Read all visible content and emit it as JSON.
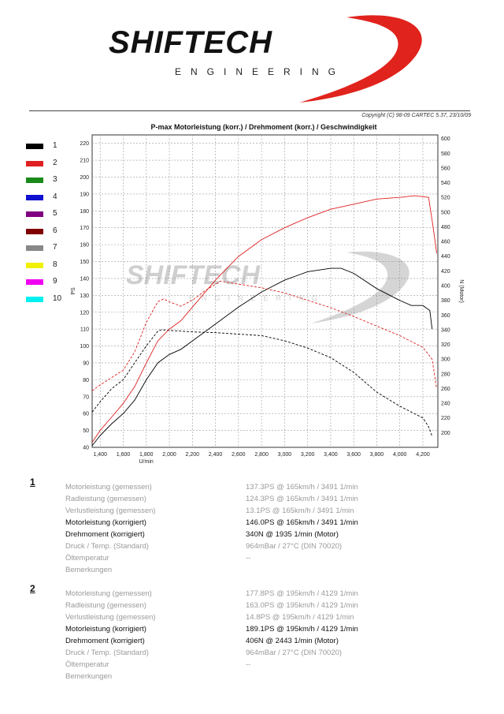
{
  "header": {
    "logo_text": "SHIFTECH",
    "logo_sub": "ENGINEERING",
    "copyright": "Copyright (C) 98-09 CARTEC 5.37, 23/10/09",
    "colors": {
      "logo_red": "#e0231c",
      "logo_black": "#111111"
    }
  },
  "watermark": {
    "text": "SHIFTECH",
    "sub": "ENGINEERING"
  },
  "legend": [
    {
      "num": "1",
      "color": "#000000"
    },
    {
      "num": "2",
      "color": "#e02020"
    },
    {
      "num": "3",
      "color": "#1a8a1a"
    },
    {
      "num": "4",
      "color": "#1010d0"
    },
    {
      "num": "5",
      "color": "#800080"
    },
    {
      "num": "6",
      "color": "#800000"
    },
    {
      "num": "7",
      "color": "#888888"
    },
    {
      "num": "8",
      "color": "#f0f000"
    },
    {
      "num": "9",
      "color": "#f000f0"
    },
    {
      "num": "10",
      "color": "#00f0f0"
    }
  ],
  "chart_data": {
    "type": "line",
    "title": "P-max Motorleistung (korr.) / Drehmoment (korr.) / Geschwindigkeit",
    "xlabel": "U/min",
    "ylabel_left": "PS",
    "ylabel_right": "N (Motor)",
    "xlim": [
      1330,
      4330
    ],
    "ylim_left": [
      40,
      225
    ],
    "ylim_right": [
      180,
      605
    ],
    "grid": true,
    "x_ticks": [
      "1,400",
      "1,600",
      "1,800",
      "2,000",
      "2,200",
      "2,400",
      "2,600",
      "2,800",
      "3,000",
      "3,200",
      "3,400",
      "3,600",
      "3,800",
      "4,000",
      "4,200"
    ],
    "y_left_ticks": [
      "40",
      "50",
      "60",
      "70",
      "80",
      "90",
      "100",
      "110",
      "120",
      "130",
      "140",
      "150",
      "160",
      "170",
      "180",
      "190",
      "200",
      "210",
      "220"
    ],
    "y_right_ticks": [
      "200",
      "220",
      "240",
      "260",
      "280",
      "300",
      "320",
      "340",
      "360",
      "380",
      "400",
      "420",
      "440",
      "460",
      "480",
      "500",
      "520",
      "540",
      "560",
      "580",
      "600"
    ],
    "series": [
      {
        "name": "1",
        "color": "#000000",
        "axis": "left",
        "style": "solid",
        "x": [
          1330,
          1400,
          1500,
          1600,
          1700,
          1800,
          1900,
          2000,
          2100,
          2200,
          2400,
          2600,
          2800,
          3000,
          3200,
          3400,
          3491,
          3600,
          3800,
          4000,
          4100,
          4200,
          4260,
          4280
        ],
        "y": [
          41,
          47,
          54,
          60,
          68,
          80,
          90,
          95,
          98,
          103,
          113,
          123,
          132,
          139,
          144,
          146,
          146,
          143,
          134,
          127,
          124,
          124,
          121,
          110
        ]
      },
      {
        "name": "1",
        "color": "#000000",
        "axis": "right",
        "style": "dashed",
        "x": [
          1330,
          1400,
          1500,
          1600,
          1700,
          1800,
          1900,
          1935,
          2000,
          2200,
          2400,
          2600,
          2800,
          3000,
          3200,
          3400,
          3600,
          3800,
          4000,
          4100,
          4200,
          4250,
          4280
        ],
        "y": [
          228,
          242,
          260,
          272,
          295,
          318,
          338,
          340,
          339,
          337,
          336,
          334,
          332,
          325,
          315,
          302,
          282,
          255,
          236,
          228,
          220,
          208,
          195
        ]
      },
      {
        "name": "2",
        "color": "#e02020",
        "axis": "left",
        "style": "solid",
        "x": [
          1330,
          1400,
          1500,
          1600,
          1700,
          1800,
          1900,
          2000,
          2100,
          2200,
          2400,
          2600,
          2800,
          3000,
          3200,
          3400,
          3600,
          3800,
          4000,
          4129,
          4250,
          4290,
          4320
        ],
        "y": [
          43,
          50,
          58,
          66,
          76,
          90,
          103,
          110,
          115,
          123,
          139,
          153,
          163,
          170,
          176,
          181,
          184,
          187,
          188,
          189,
          188,
          170,
          155
        ]
      },
      {
        "name": "2",
        "color": "#e02020",
        "axis": "right",
        "style": "dashed",
        "x": [
          1330,
          1400,
          1500,
          1600,
          1700,
          1800,
          1900,
          1950,
          2000,
          2100,
          2200,
          2300,
          2443,
          2600,
          2800,
          3000,
          3200,
          3400,
          3600,
          3800,
          4000,
          4200,
          4280,
          4320
        ],
        "y": [
          257,
          265,
          275,
          285,
          310,
          350,
          378,
          382,
          378,
          372,
          380,
          392,
          406,
          402,
          397,
          390,
          380,
          370,
          358,
          345,
          332,
          316,
          300,
          260
        ]
      }
    ]
  },
  "results": [
    {
      "num": "1",
      "rows": [
        {
          "label": "Motorleistung (gemessen)",
          "value": "137.3PS @ 165km/h / 3491 1/min",
          "dark": false
        },
        {
          "label": "Radleistung (gemessen)",
          "value": "124.3PS @ 165km/h / 3491 1/min",
          "dark": false
        },
        {
          "label": "Verlustleistung (gemessen)",
          "value": "13.1PS @ 165km/h / 3491 1/min",
          "dark": false
        },
        {
          "label": "Motorleistung (korrigiert)",
          "value": "146.0PS @ 165km/h / 3491 1/min",
          "dark": true
        },
        {
          "label": "Drehmoment (korrigiert)",
          "value": "340N @ 1935 1/min (Motor)",
          "dark": true
        },
        {
          "label": "Druck / Temp. (Standard)",
          "value": "964mBar / 27°C    (DIN 70020)",
          "dark": false
        },
        {
          "label": "Öltemperatur",
          "value": "--",
          "dark": false
        },
        {
          "label": "Bemerkungen",
          "value": "",
          "dark": false
        }
      ]
    },
    {
      "num": "2",
      "rows": [
        {
          "label": "Motorleistung (gemessen)",
          "value": "177.8PS @ 195km/h / 4129 1/min",
          "dark": false
        },
        {
          "label": "Radleistung (gemessen)",
          "value": "163.0PS @ 195km/h / 4129 1/min",
          "dark": false
        },
        {
          "label": "Verlustleistung (gemessen)",
          "value": "14.8PS @ 195km/h / 4129 1/min",
          "dark": false
        },
        {
          "label": "Motorleistung (korrigiert)",
          "value": "189.1PS @ 195km/h / 4129 1/min",
          "dark": true
        },
        {
          "label": "Drehmoment (korrigiert)",
          "value": "406N @ 2443 1/min (Motor)",
          "dark": true
        },
        {
          "label": "Druck / Temp. (Standard)",
          "value": "964mBar / 27°C    (DIN 70020)",
          "dark": false
        },
        {
          "label": "Öltemperatur",
          "value": "--",
          "dark": false
        },
        {
          "label": "Bemerkungen",
          "value": "",
          "dark": false
        }
      ]
    }
  ]
}
